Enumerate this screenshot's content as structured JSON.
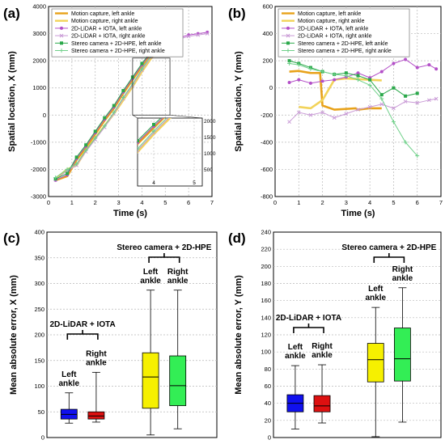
{
  "colors": {
    "mocap_left": "#e8a21a",
    "mocap_right": "#f2d35a",
    "lidar_left": "#b450c8",
    "lidar_right": "#c99ad6",
    "stereo_left": "#2aa84a",
    "stereo_right": "#6fd089",
    "box_lidar_left": "#1010ee",
    "box_lidar_right": "#dd1010",
    "box_stereo_left": "#f6f000",
    "box_stereo_right": "#33ee55",
    "grid": "#b8b8b8",
    "axis": "#000000"
  },
  "chart_data": [
    {
      "id": "a",
      "panel_label": "(a)",
      "type": "line",
      "xlabel": "Time (s)",
      "ylabel": "Spatial location, X (mm)",
      "xlim": [
        0,
        7
      ],
      "ylim": [
        -3000,
        4000
      ],
      "xticks": [
        0,
        1,
        2,
        3,
        4,
        5,
        6,
        7
      ],
      "yticks": [
        -3000,
        -2000,
        -1000,
        0,
        1000,
        2000,
        3000,
        4000
      ],
      "grid": true,
      "legend_position": "top-left",
      "series": [
        {
          "name": "Motion capture, left ankle",
          "color_key": "mocap_left",
          "marker": "none",
          "x": [
            0.3,
            0.8,
            1.2,
            1.6,
            2.0,
            2.4,
            2.8,
            3.2,
            3.6,
            4.0,
            4.4,
            4.8
          ],
          "y": [
            -2400,
            -2250,
            -1650,
            -1200,
            -700,
            -200,
            250,
            800,
            1300,
            1800,
            2300,
            2550
          ]
        },
        {
          "name": "Motion capture, right ankle",
          "color_key": "mocap_right",
          "marker": "none",
          "x": [
            0.3,
            0.8,
            1.2,
            1.6,
            2.0,
            2.4,
            2.8,
            3.2,
            3.6,
            4.0,
            4.4,
            4.8
          ],
          "y": [
            -2350,
            -2000,
            -1850,
            -1300,
            -850,
            -400,
            50,
            550,
            1050,
            1600,
            2100,
            2500
          ]
        },
        {
          "name": "2D-LiDAR + IOTA, left ankle",
          "color_key": "lidar_left",
          "marker": "dot",
          "x": [
            0.3,
            0.8,
            1.2,
            1.6,
            2.0,
            2.4,
            2.8,
            3.2,
            3.6,
            4.0,
            4.4,
            4.8,
            5.2,
            5.6,
            6.0,
            6.4,
            6.8
          ],
          "y": [
            -2400,
            -2200,
            -1600,
            -1150,
            -650,
            -150,
            300,
            850,
            1350,
            1850,
            2300,
            2500,
            2700,
            2850,
            2950,
            3000,
            3050
          ]
        },
        {
          "name": "2D-LiDAR + IOTA, right ankle",
          "color_key": "lidar_right",
          "marker": "cross",
          "x": [
            0.3,
            0.8,
            1.2,
            1.6,
            2.0,
            2.4,
            2.8,
            3.2,
            3.6,
            4.0,
            4.4,
            4.8,
            5.2,
            5.6,
            6.0,
            6.4,
            6.8
          ],
          "y": [
            -2380,
            -2050,
            -1850,
            -1350,
            -900,
            -450,
            50,
            600,
            1100,
            1650,
            2150,
            2450,
            2600,
            2800,
            2900,
            2950,
            3000
          ]
        },
        {
          "name": "Stereo camera + 2D-HPE, left ankle",
          "color_key": "stereo_left",
          "marker": "square",
          "x": [
            0.3,
            0.8,
            1.2,
            1.6,
            2.0,
            2.4,
            2.8,
            3.2,
            3.6,
            4.0,
            4.4,
            4.8,
            5.2
          ],
          "y": [
            -2350,
            -2150,
            -1550,
            -1100,
            -600,
            -100,
            350,
            900,
            1400,
            1900,
            2350,
            2550,
            2650
          ]
        },
        {
          "name": "Stereo camera + 2D-HPE, right ankle",
          "color_key": "stereo_right",
          "marker": "plus",
          "x": [
            0.3,
            0.8,
            1.2,
            1.6,
            2.0,
            2.4,
            2.8,
            3.2,
            3.6,
            4.0,
            4.4,
            4.8,
            5.2
          ],
          "y": [
            -2300,
            -2000,
            -1800,
            -1300,
            -850,
            -400,
            100,
            650,
            1150,
            1700,
            2200,
            2500,
            2600
          ]
        }
      ],
      "inset": {
        "xlim": [
          3.6,
          5.2
        ],
        "ylim": [
          0,
          2100
        ],
        "xticks": [
          4,
          5
        ],
        "yticks": [
          500,
          1000,
          1500,
          2000
        ]
      }
    },
    {
      "id": "b",
      "panel_label": "(b)",
      "type": "line",
      "xlabel": "Time (s)",
      "ylabel": "Spatial location, Y (mm)",
      "xlim": [
        0,
        7
      ],
      "ylim": [
        -800,
        600
      ],
      "xticks": [
        0,
        1,
        2,
        3,
        4,
        5,
        6,
        7
      ],
      "yticks": [
        -800,
        -600,
        -400,
        -200,
        0,
        200,
        400,
        600
      ],
      "grid": true,
      "legend_position": "top-left",
      "series": [
        {
          "name": "Motion capture, left ankle",
          "color_key": "mocap_left",
          "marker": "none",
          "x": [
            0.6,
            1.0,
            1.5,
            1.9,
            2.0,
            2.5,
            3.0,
            3.4,
            3.5,
            4.0,
            4.5
          ],
          "y": [
            120,
            125,
            110,
            110,
            -130,
            -160,
            -155,
            -150,
            -160,
            -150,
            -150
          ]
        },
        {
          "name": "Motion capture, right ankle",
          "color_key": "mocap_right",
          "marker": "none",
          "x": [
            1.0,
            1.5,
            2.0,
            2.5,
            3.0,
            3.5,
            4.0,
            4.5
          ],
          "y": [
            -140,
            -150,
            -90,
            60,
            70,
            65,
            60,
            55
          ]
        },
        {
          "name": "2D-LiDAR + IOTA, left ankle",
          "color_key": "lidar_left",
          "marker": "dot",
          "x": [
            0.6,
            1.0,
            1.5,
            2.0,
            2.5,
            3.0,
            3.5,
            4.0,
            4.5,
            5.0,
            5.5,
            6.0,
            6.5,
            6.8
          ],
          "y": [
            40,
            60,
            35,
            50,
            60,
            80,
            110,
            75,
            120,
            180,
            210,
            150,
            170,
            140
          ]
        },
        {
          "name": "2D-LiDAR + IOTA, right ankle",
          "color_key": "lidar_right",
          "marker": "cross",
          "x": [
            0.6,
            1.0,
            1.5,
            2.0,
            2.5,
            3.0,
            3.5,
            4.0,
            4.5,
            5.0,
            5.5,
            6.0,
            6.5,
            6.8
          ],
          "y": [
            -250,
            -180,
            -200,
            -180,
            -220,
            -190,
            -160,
            -140,
            -120,
            -150,
            -100,
            -110,
            -90,
            -80
          ]
        },
        {
          "name": "Stereo camera + 2D-HPE, left ankle",
          "color_key": "stereo_left",
          "marker": "square",
          "x": [
            0.6,
            1.0,
            1.5,
            2.0,
            2.5,
            3.0,
            3.5,
            4.0,
            4.5,
            5.0,
            5.5,
            6.0
          ],
          "y": [
            200,
            180,
            150,
            120,
            100,
            110,
            90,
            60,
            -50,
            0,
            -60,
            -40
          ]
        },
        {
          "name": "Stereo camera + 2D-HPE, right ankle",
          "color_key": "stereo_right",
          "marker": "plus",
          "x": [
            0.6,
            1.0,
            1.5,
            2.0,
            2.5,
            3.0,
            3.5,
            4.0,
            4.5,
            5.0,
            5.5,
            6.0
          ],
          "y": [
            180,
            170,
            140,
            120,
            100,
            90,
            60,
            20,
            -80,
            -250,
            -400,
            -500
          ]
        }
      ]
    },
    {
      "id": "c",
      "panel_label": "(c)",
      "type": "box",
      "ylabel": "Mean absolute error, X (mm)",
      "ylim": [
        0,
        400
      ],
      "yticks": [
        0,
        50,
        100,
        150,
        200,
        250,
        300,
        350,
        400
      ],
      "grid": true,
      "groups": [
        {
          "label": "2D-LiDAR + IOTA",
          "boxes": [
            0,
            1
          ]
        },
        {
          "label": "Stereo camera + 2D-HPE",
          "boxes": [
            2,
            3
          ]
        }
      ],
      "boxes": [
        {
          "label": "Left ankle",
          "min": 28,
          "q1": 36,
          "median": 45,
          "q3": 55,
          "max": 87,
          "color_key": "box_lidar_left"
        },
        {
          "label": "Right ankle",
          "min": 30,
          "q1": 36,
          "median": 42,
          "q3": 50,
          "max": 127,
          "color_key": "box_lidar_right"
        },
        {
          "label": "Left ankle",
          "min": 5,
          "q1": 57,
          "median": 118,
          "q3": 165,
          "max": 287,
          "color_key": "box_stereo_left"
        },
        {
          "label": "Right ankle",
          "min": 17,
          "q1": 62,
          "median": 101,
          "q3": 159,
          "max": 287,
          "color_key": "box_stereo_right"
        }
      ]
    },
    {
      "id": "d",
      "panel_label": "(d)",
      "type": "box",
      "ylabel": "Mean absolute error, Y (mm)",
      "ylim": [
        0,
        240
      ],
      "yticks": [
        0,
        20,
        40,
        60,
        80,
        100,
        120,
        140,
        160,
        180,
        200,
        220,
        240
      ],
      "grid": true,
      "groups": [
        {
          "label": "2D-LiDAR + IOTA",
          "boxes": [
            0,
            1
          ]
        },
        {
          "label": "Stereo camera + 2D-HPE",
          "boxes": [
            2,
            3
          ]
        }
      ],
      "boxes": [
        {
          "label": "Left ankle",
          "min": 10,
          "q1": 30,
          "median": 40,
          "q3": 50,
          "max": 84,
          "color_key": "box_lidar_left"
        },
        {
          "label": "Right ankle",
          "min": 17,
          "q1": 30,
          "median": 37,
          "q3": 49,
          "max": 85,
          "color_key": "box_lidar_right"
        },
        {
          "label": "Left ankle",
          "min": 1,
          "q1": 65,
          "median": 91,
          "q3": 110,
          "max": 152,
          "color_key": "box_stereo_left"
        },
        {
          "label": "Right ankle",
          "min": 18,
          "q1": 66,
          "median": 92,
          "q3": 128,
          "max": 175,
          "color_key": "box_stereo_right"
        }
      ]
    }
  ]
}
